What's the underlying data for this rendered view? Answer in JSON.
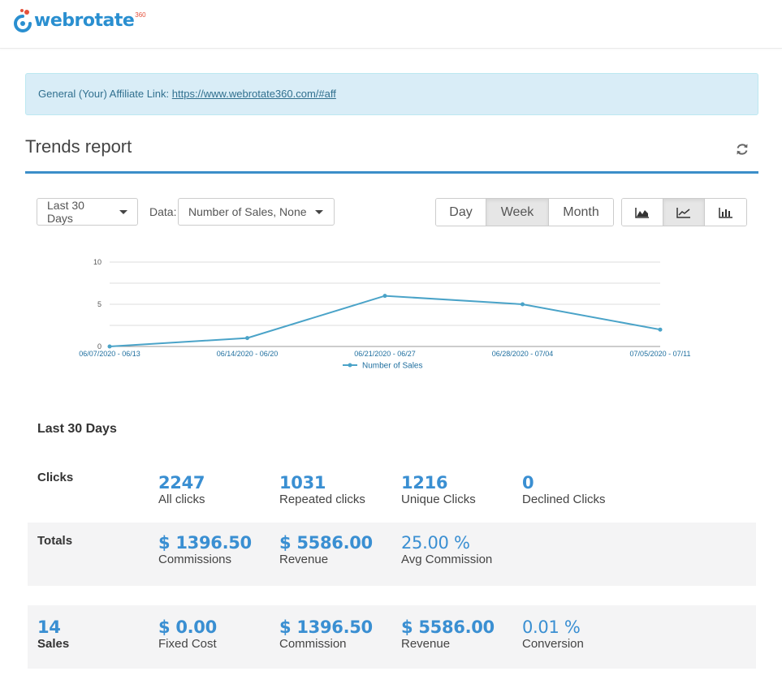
{
  "brand": {
    "name": "webrotate",
    "superscript": "360"
  },
  "alert": {
    "prefix": "General (Your) Affiliate Link: ",
    "link": "https://www.webrotate360.com/#aff"
  },
  "report": {
    "title": "Trends report"
  },
  "controls": {
    "range_selected": "Last 30 Days",
    "data_label": "Data:",
    "data_selected": "Number of Sales, None",
    "period": [
      {
        "label": "Day",
        "active": false
      },
      {
        "label": "Week",
        "active": true
      },
      {
        "label": "Month",
        "active": false
      }
    ],
    "chart_types": [
      {
        "icon": "area-chart-icon",
        "active": false
      },
      {
        "icon": "line-chart-icon",
        "active": true
      },
      {
        "icon": "bar-chart-icon",
        "active": false
      }
    ]
  },
  "chart_data": {
    "type": "line",
    "x": [
      "06/07/2020 - 06/13",
      "06/14/2020 - 06/20",
      "06/21/2020 - 06/27",
      "06/28/2020 - 07/04",
      "07/05/2020 - 07/11"
    ],
    "series": [
      {
        "name": "Number of Sales",
        "values": [
          0,
          1,
          6,
          5,
          2
        ],
        "color": "#4aa3c8"
      }
    ],
    "ylim": [
      0,
      10
    ],
    "yticks": [
      "0",
      "5",
      "10"
    ],
    "grid": true,
    "legend": "bottom-center"
  },
  "summary": {
    "title": "Last 30 Days",
    "clicks": {
      "label": "Clicks",
      "items": [
        {
          "value": "2247",
          "label": "All clicks"
        },
        {
          "value": "1031",
          "label": "Repeated clicks"
        },
        {
          "value": "1216",
          "label": "Unique Clicks"
        },
        {
          "value": "0",
          "label": "Declined Clicks"
        }
      ]
    },
    "totals": {
      "label": "Totals",
      "items": [
        {
          "value": "$ 1396.50",
          "label": "Commissions"
        },
        {
          "value": "$ 5586.00",
          "label": "Revenue"
        },
        {
          "value": "25.00 %",
          "label": "Avg Commission"
        }
      ]
    },
    "sales": {
      "count": "14",
      "label": "Sales",
      "items": [
        {
          "value": "$ 0.00",
          "label": "Fixed Cost"
        },
        {
          "value": "$ 1396.50",
          "label": "Commission"
        },
        {
          "value": "$ 5586.00",
          "label": "Revenue"
        },
        {
          "value": "0.01 %",
          "label": "Conversion"
        }
      ]
    }
  }
}
